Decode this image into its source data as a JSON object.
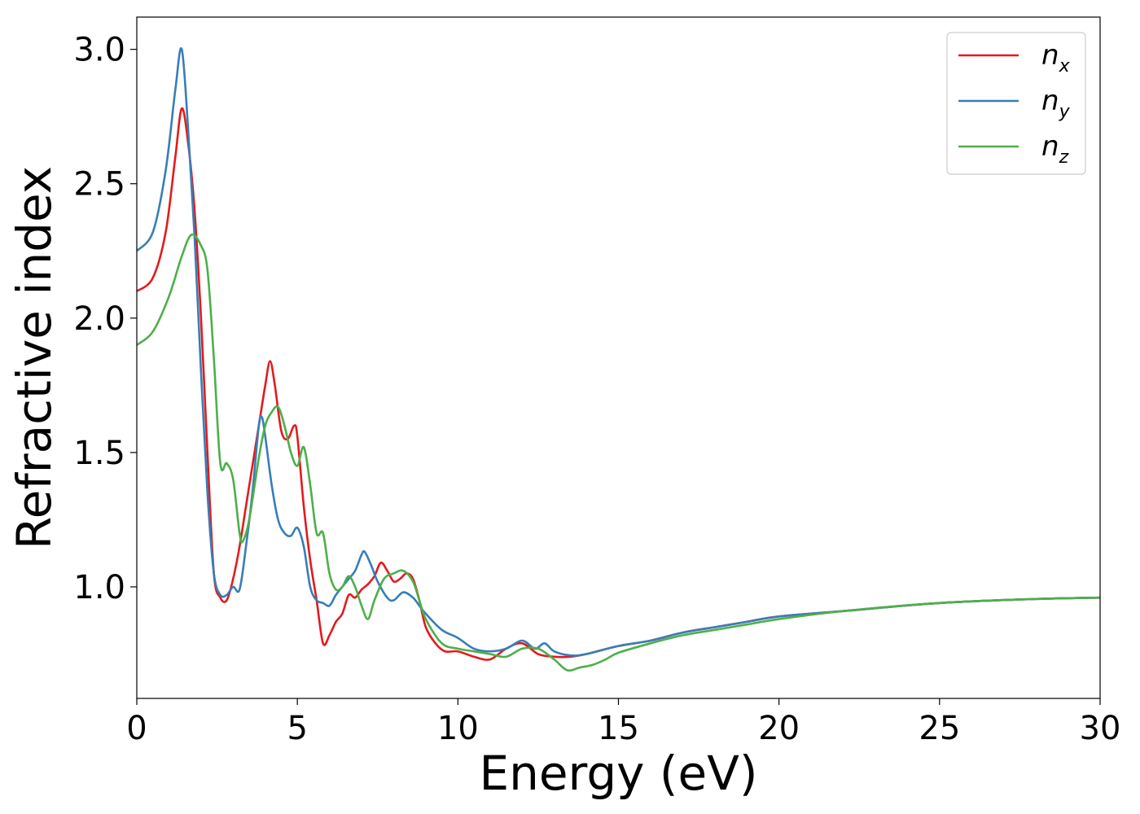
{
  "chart_data": {
    "type": "line",
    "xlabel": "Energy (eV)",
    "ylabel": "Refractive index",
    "xlim": [
      0,
      30
    ],
    "ylim": [
      0.585,
      3.12
    ],
    "xticks": [
      "0",
      "5",
      "10",
      "15",
      "20",
      "25",
      "30"
    ],
    "yticks": [
      "1.0",
      "1.5",
      "2.0",
      "2.5",
      "3.0"
    ],
    "grid": false,
    "legend_position": "top-right",
    "series": [
      {
        "name": "n_x",
        "label_base": "n",
        "label_sub": "x",
        "color": "#e41a1c",
        "x": [
          0,
          0.5,
          0.9,
          1.2,
          1.4,
          1.6,
          1.8,
          2.0,
          2.2,
          2.4,
          2.6,
          2.8,
          3.0,
          3.2,
          3.4,
          3.6,
          3.8,
          4.0,
          4.15,
          4.3,
          4.5,
          4.7,
          4.9,
          5.0,
          5.2,
          5.4,
          5.6,
          5.8,
          6.0,
          6.2,
          6.4,
          6.6,
          6.8,
          7.0,
          7.2,
          7.4,
          7.6,
          7.8,
          8.0,
          8.2,
          8.4,
          8.6,
          8.8,
          9.0,
          9.3,
          9.6,
          10.0,
          10.5,
          11.0,
          11.5,
          12.0,
          12.5,
          13.0,
          13.5,
          14.0,
          15.0,
          16.0,
          17.0,
          18.0,
          19.0,
          20.0,
          22.0,
          25.0,
          28.0,
          30.0
        ],
        "y": [
          2.1,
          2.15,
          2.32,
          2.6,
          2.78,
          2.65,
          2.4,
          2.0,
          1.5,
          1.05,
          0.96,
          0.95,
          1.03,
          1.15,
          1.3,
          1.45,
          1.6,
          1.75,
          1.84,
          1.75,
          1.58,
          1.55,
          1.6,
          1.56,
          1.3,
          1.1,
          0.95,
          0.79,
          0.82,
          0.87,
          0.9,
          0.97,
          0.96,
          0.99,
          1.01,
          1.04,
          1.09,
          1.06,
          1.02,
          1.03,
          1.05,
          1.03,
          0.95,
          0.85,
          0.79,
          0.76,
          0.76,
          0.74,
          0.73,
          0.77,
          0.79,
          0.75,
          0.74,
          0.74,
          0.75,
          0.78,
          0.8,
          0.83,
          0.85,
          0.87,
          0.89,
          0.91,
          0.94,
          0.955,
          0.96
        ]
      },
      {
        "name": "n_y",
        "label_base": "n",
        "label_sub": "y",
        "color": "#377eb8",
        "x": [
          0,
          0.5,
          0.9,
          1.2,
          1.4,
          1.6,
          1.8,
          2.0,
          2.2,
          2.4,
          2.6,
          2.8,
          3.0,
          3.2,
          3.4,
          3.6,
          3.8,
          3.9,
          4.0,
          4.2,
          4.4,
          4.6,
          4.8,
          5.0,
          5.2,
          5.4,
          5.6,
          5.8,
          6.0,
          6.2,
          6.4,
          6.6,
          6.8,
          7.0,
          7.1,
          7.3,
          7.5,
          7.8,
          8.0,
          8.3,
          8.6,
          8.8,
          9.0,
          9.5,
          10.0,
          10.5,
          11.0,
          11.5,
          12.0,
          12.4,
          12.7,
          13.0,
          13.5,
          14.0,
          15.0,
          16.0,
          17.0,
          18.0,
          19.0,
          20.0,
          22.0,
          25.0,
          28.0,
          30.0
        ],
        "y": [
          2.25,
          2.32,
          2.55,
          2.85,
          3.0,
          2.7,
          2.3,
          1.8,
          1.35,
          1.05,
          0.97,
          0.97,
          1.0,
          0.99,
          1.15,
          1.35,
          1.6,
          1.63,
          1.56,
          1.38,
          1.25,
          1.2,
          1.19,
          1.22,
          1.15,
          1.0,
          0.95,
          0.94,
          0.93,
          0.97,
          1.0,
          1.03,
          1.06,
          1.12,
          1.13,
          1.08,
          1.02,
          0.96,
          0.95,
          0.98,
          0.96,
          0.93,
          0.9,
          0.84,
          0.81,
          0.77,
          0.76,
          0.77,
          0.8,
          0.77,
          0.79,
          0.76,
          0.745,
          0.75,
          0.78,
          0.8,
          0.83,
          0.85,
          0.87,
          0.89,
          0.91,
          0.94,
          0.955,
          0.96
        ]
      },
      {
        "name": "n_z",
        "label_base": "n",
        "label_sub": "z",
        "color": "#4daf4a",
        "x": [
          0,
          0.5,
          1.0,
          1.4,
          1.7,
          2.0,
          2.2,
          2.4,
          2.6,
          2.8,
          3.0,
          3.2,
          3.3,
          3.5,
          3.8,
          4.0,
          4.2,
          4.4,
          4.6,
          4.8,
          5.0,
          5.2,
          5.4,
          5.6,
          5.8,
          6.0,
          6.2,
          6.4,
          6.6,
          6.8,
          7.0,
          7.2,
          7.4,
          7.7,
          8.0,
          8.3,
          8.6,
          8.8,
          9.0,
          9.5,
          10.0,
          10.5,
          11.0,
          11.5,
          12.0,
          12.5,
          13.0,
          13.4,
          13.8,
          14.2,
          14.6,
          15.0,
          16.0,
          17.0,
          18.0,
          19.0,
          20.0,
          22.0,
          25.0,
          28.0,
          30.0
        ],
        "y": [
          1.9,
          1.95,
          2.08,
          2.23,
          2.31,
          2.27,
          2.18,
          1.85,
          1.46,
          1.46,
          1.4,
          1.2,
          1.17,
          1.25,
          1.48,
          1.6,
          1.65,
          1.67,
          1.6,
          1.5,
          1.45,
          1.52,
          1.38,
          1.2,
          1.2,
          1.05,
          0.99,
          1.0,
          1.04,
          1.0,
          0.93,
          0.88,
          0.95,
          1.03,
          1.05,
          1.06,
          1.02,
          0.95,
          0.88,
          0.79,
          0.77,
          0.76,
          0.75,
          0.74,
          0.77,
          0.77,
          0.73,
          0.69,
          0.7,
          0.71,
          0.73,
          0.755,
          0.79,
          0.82,
          0.84,
          0.86,
          0.88,
          0.91,
          0.94,
          0.955,
          0.96
        ]
      }
    ]
  }
}
